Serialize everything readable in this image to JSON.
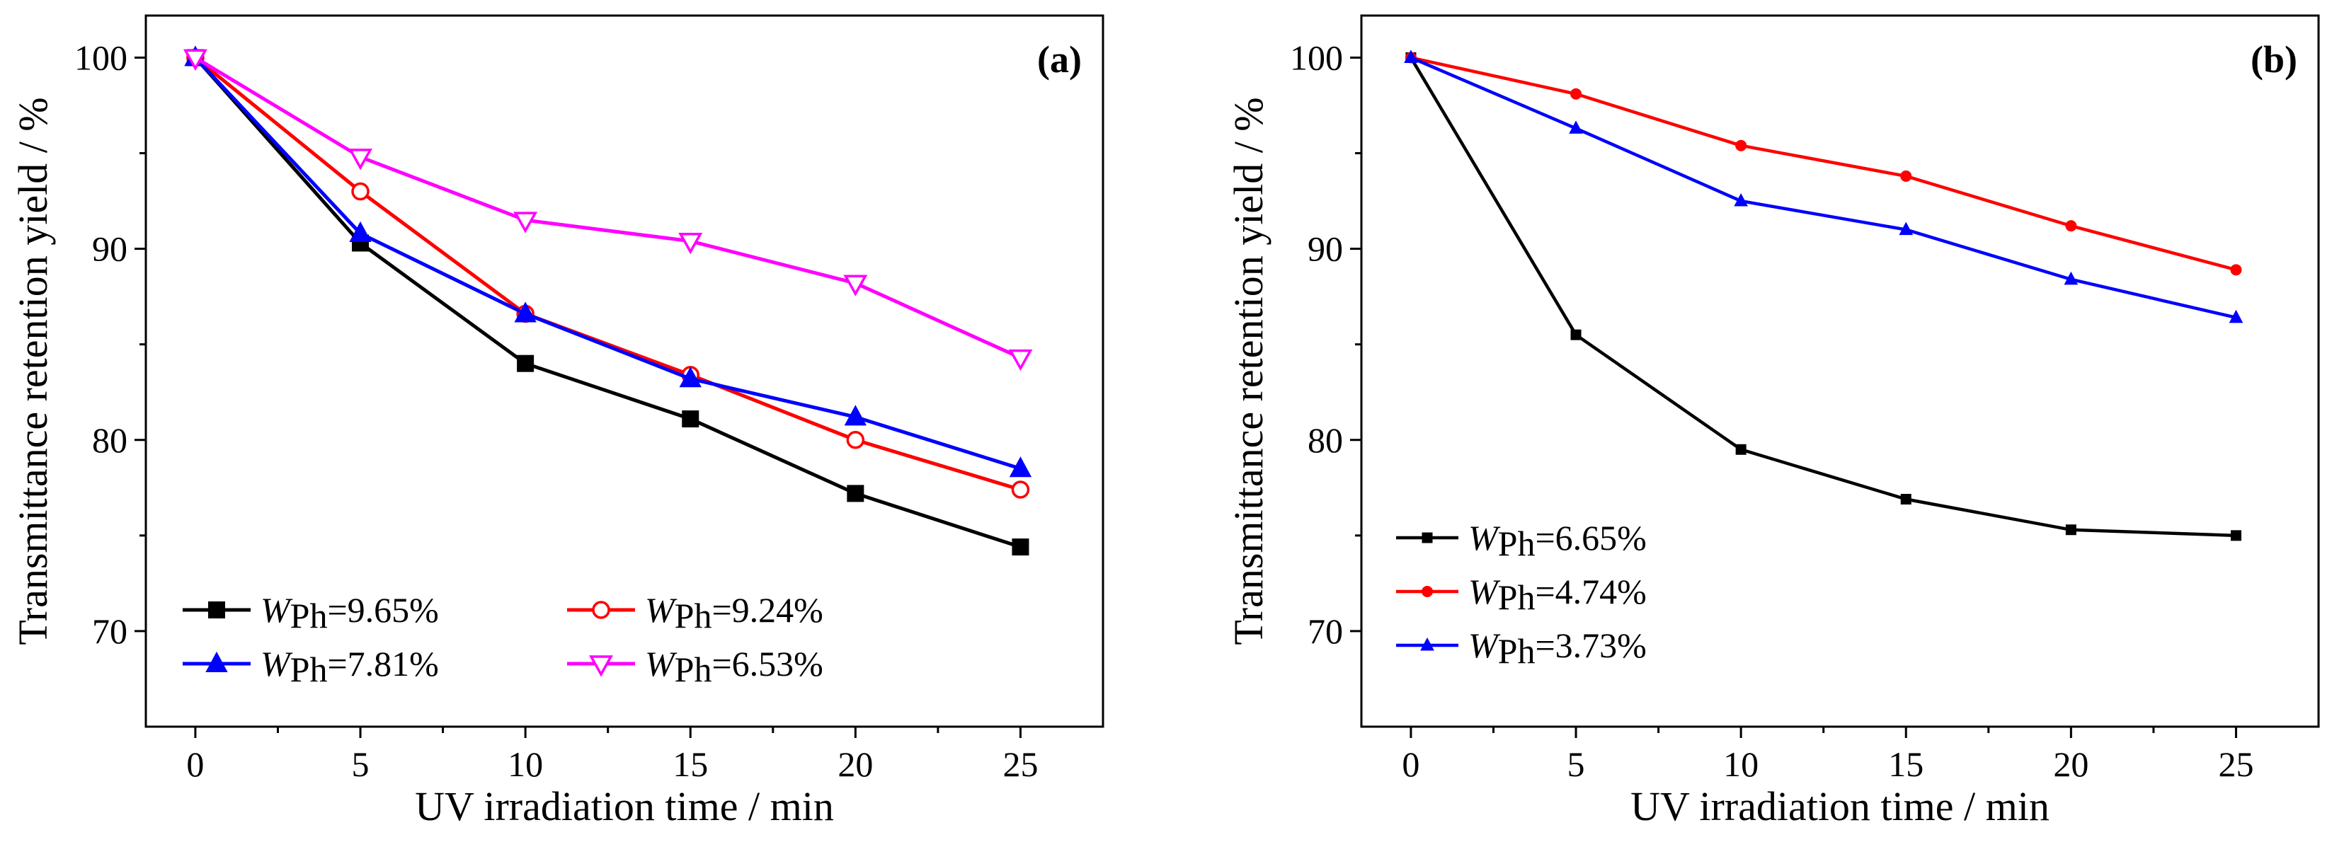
{
  "chart_data": [
    {
      "type": "line",
      "panel_label": "(a)",
      "xlabel": "UV irradiation time / min",
      "ylabel": "Transmittance retention yield / %",
      "xlim": [
        -1.5,
        27.5
      ],
      "ylim": [
        65,
        102.2
      ],
      "xticks": [
        0,
        5,
        10,
        15,
        20,
        25
      ],
      "yticks": [
        70,
        80,
        90,
        100
      ],
      "x": [
        0,
        5,
        10,
        15,
        20,
        25
      ],
      "legend_columns": 2,
      "legend_position": "bottom-left",
      "series": [
        {
          "name": "WPh=9.65%",
          "symbol": "W",
          "subscript": "Ph",
          "value_text": "=9.65%",
          "color": "#000000",
          "marker": "square-filled",
          "values": [
            100,
            90.3,
            84.0,
            81.1,
            77.2,
            74.4
          ]
        },
        {
          "name": "WPh=9.24%",
          "symbol": "W",
          "subscript": "Ph",
          "value_text": "=9.24%",
          "color": "#ff0000",
          "marker": "circle-open",
          "values": [
            100,
            93.0,
            86.6,
            83.4,
            80.0,
            77.4
          ]
        },
        {
          "name": "WPh=7.81%",
          "symbol": "W",
          "subscript": "Ph",
          "value_text": "=7.81%",
          "color": "#0000ff",
          "marker": "triangle-up-filled",
          "values": [
            100,
            90.8,
            86.6,
            83.2,
            81.2,
            78.5
          ]
        },
        {
          "name": "WPh=6.53%",
          "symbol": "W",
          "subscript": "Ph",
          "value_text": "=6.53%",
          "color": "#ff00ff",
          "marker": "triangle-down-open",
          "values": [
            100,
            94.8,
            91.5,
            90.4,
            88.2,
            84.3
          ]
        }
      ]
    },
    {
      "type": "line",
      "panel_label": "(b)",
      "xlabel": "UV irradiation time / min",
      "ylabel": "Transmittance retention yield / %",
      "xlim": [
        -1.5,
        27.5
      ],
      "ylim": [
        65,
        102.2
      ],
      "xticks": [
        0,
        5,
        10,
        15,
        20,
        25
      ],
      "yticks": [
        70,
        80,
        90,
        100
      ],
      "x": [
        0,
        5,
        10,
        15,
        20,
        25
      ],
      "legend_columns": 1,
      "legend_position": "bottom-left",
      "series": [
        {
          "name": "WPh=6.65%",
          "symbol": "W",
          "subscript": "Ph",
          "value_text": "=6.65%",
          "color": "#000000",
          "marker": "square-small",
          "values": [
            100,
            85.5,
            79.5,
            76.9,
            75.3,
            75.0
          ]
        },
        {
          "name": "WPh=4.74%",
          "symbol": "W",
          "subscript": "Ph",
          "value_text": "=4.74%",
          "color": "#ff0000",
          "marker": "circle-small",
          "values": [
            100,
            98.1,
            95.4,
            93.8,
            91.2,
            88.9
          ]
        },
        {
          "name": "WPh=3.73%",
          "symbol": "W",
          "subscript": "Ph",
          "value_text": "=3.73%",
          "color": "#0000ff",
          "marker": "triangle-small",
          "values": [
            100,
            96.3,
            92.5,
            91.0,
            88.4,
            86.4
          ]
        }
      ]
    }
  ]
}
